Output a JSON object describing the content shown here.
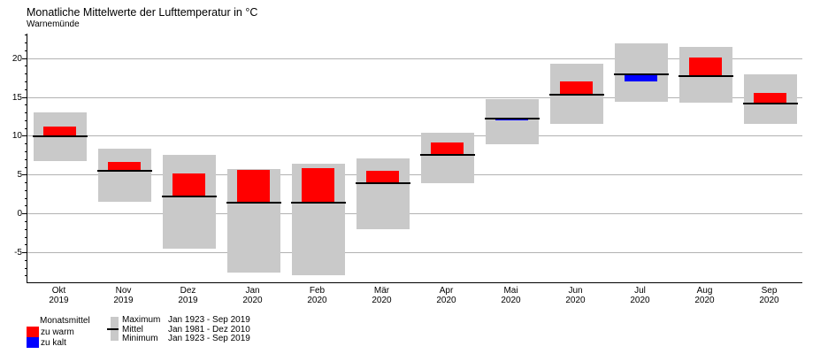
{
  "title": "Monatliche Mittelwerte der Lufttemperatur in °C",
  "subtitle": "Warnemünde",
  "colors": {
    "too_warm": "#ff0000",
    "too_cold": "#0000ff",
    "range_bar": "#c9c9c9",
    "grid_line": "#b2b2b2",
    "mean_line": "#000000",
    "axis": "#000000"
  },
  "legend": {
    "monthly_mean_title": "Monatsmittel",
    "too_warm": "zu warm",
    "too_cold": "zu kalt",
    "rows": [
      {
        "label": "Maximum",
        "period": "Jan 1923 - Sep 2019"
      },
      {
        "label": "Mittel",
        "period": "Jan 1981 - Dez 2010"
      },
      {
        "label": "Minimum",
        "period": "Jan 1923 - Sep 2019"
      }
    ]
  },
  "chart_data": {
    "type": "bar",
    "title": "Monatliche Mittelwerte der Lufttemperatur in °C",
    "station": "Warnemünde",
    "unit": "°C",
    "ylim": [
      -8.8,
      23.2
    ],
    "yticks": [
      -5,
      0,
      5,
      10,
      15,
      20
    ],
    "minor_tick_step": 1,
    "grid": true,
    "legend_position": "bottom-left",
    "categories": [
      {
        "month": "Okt",
        "year": "2019"
      },
      {
        "month": "Nov",
        "year": "2019"
      },
      {
        "month": "Dez",
        "year": "2019"
      },
      {
        "month": "Jan",
        "year": "2020"
      },
      {
        "month": "Feb",
        "year": "2020"
      },
      {
        "month": "Mär",
        "year": "2020"
      },
      {
        "month": "Apr",
        "year": "2020"
      },
      {
        "month": "Mai",
        "year": "2020"
      },
      {
        "month": "Jun",
        "year": "2020"
      },
      {
        "month": "Jul",
        "year": "2020"
      },
      {
        "month": "Aug",
        "year": "2020"
      },
      {
        "month": "Sep",
        "year": "2020"
      }
    ],
    "series": [
      {
        "name": "Maximum",
        "period": "Jan 1923 - Sep 2019",
        "values": [
          13.1,
          8.4,
          7.6,
          5.8,
          6.5,
          7.2,
          10.5,
          14.8,
          19.3,
          22.0,
          21.5,
          18.0
        ]
      },
      {
        "name": "Mittel",
        "period": "Jan 1981 - Dez 2010",
        "values": [
          10.0,
          5.5,
          2.3,
          1.4,
          1.5,
          3.9,
          7.6,
          12.3,
          15.3,
          18.0,
          17.7,
          14.2
        ]
      },
      {
        "name": "Minimum",
        "period": "Jan 1923 - Sep 2019",
        "values": [
          6.8,
          1.6,
          -4.5,
          -7.6,
          -7.9,
          -2.0,
          3.9,
          9.0,
          11.6,
          14.4,
          14.3,
          11.6
        ]
      },
      {
        "name": "Monatsmittel",
        "values": [
          11.2,
          6.7,
          5.2,
          5.7,
          5.9,
          5.5,
          9.2,
          12.0,
          17.0,
          17.1,
          20.1,
          15.6
        ]
      }
    ]
  }
}
